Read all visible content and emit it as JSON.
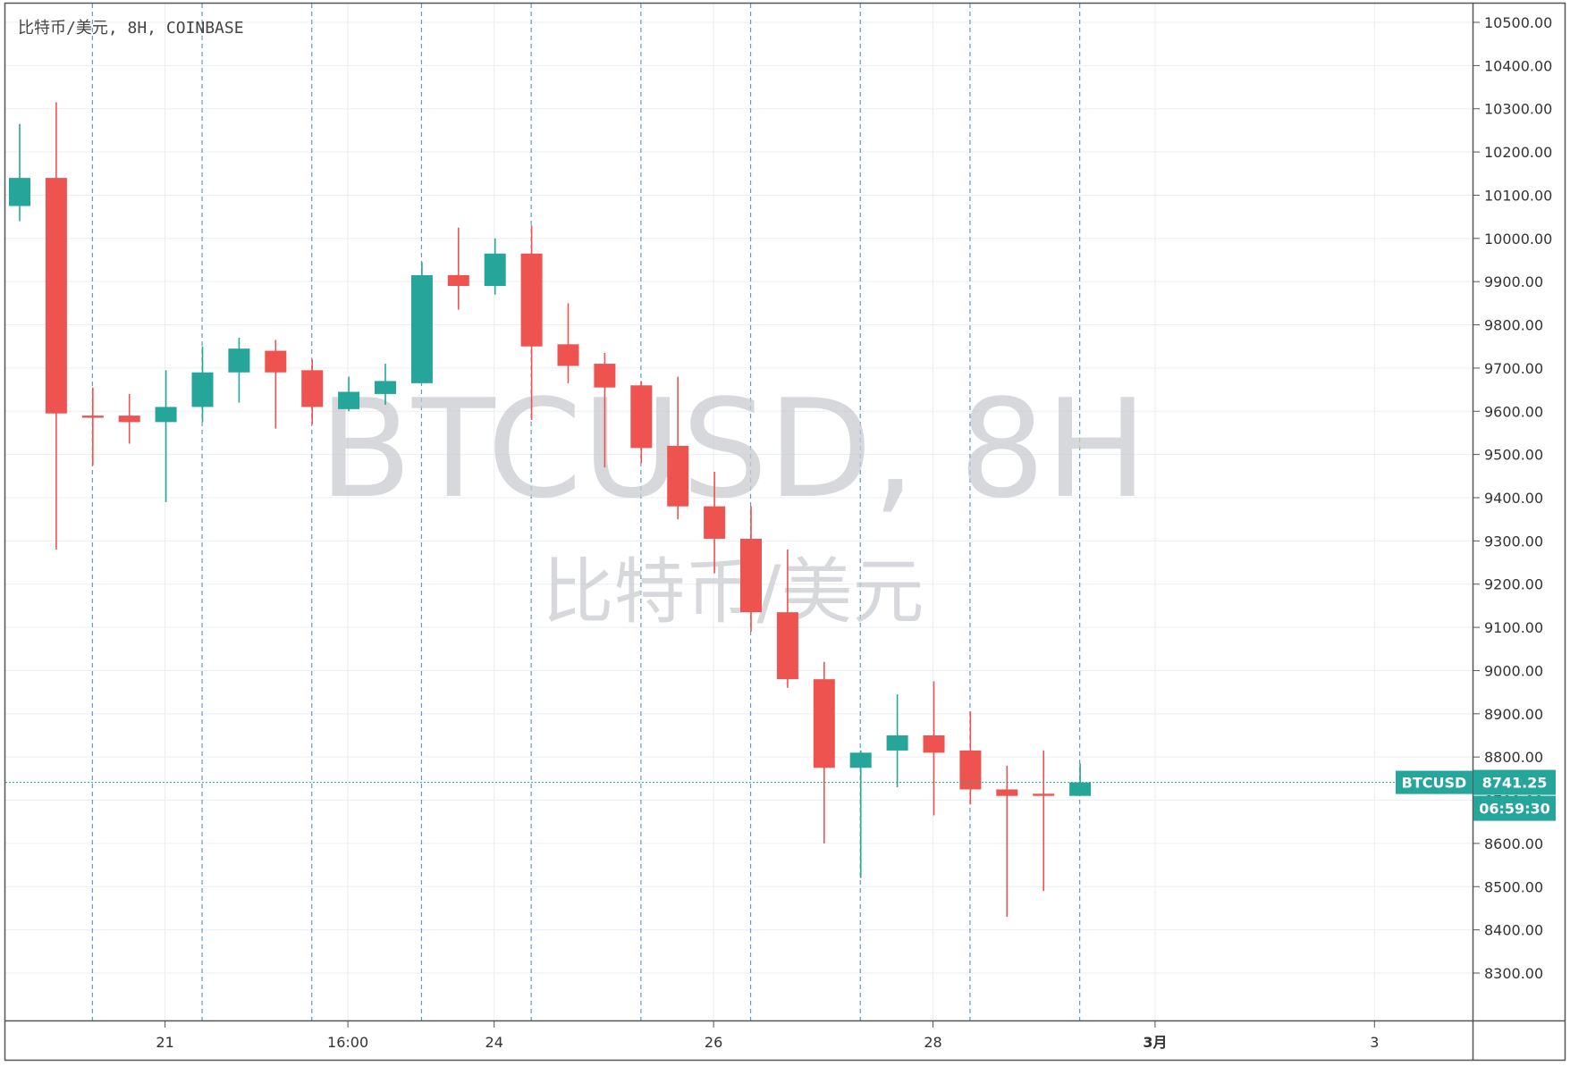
{
  "header": {
    "symbol_line": "比特币/美元, 8H, COINBASE"
  },
  "watermark": {
    "ticker": "BTCUSD, 8H",
    "description": "比特币/美元"
  },
  "price_tag": {
    "label": "BTCUSD",
    "price": "8741.25",
    "countdown": "06:59:30"
  },
  "colors": {
    "up": "#26a69a",
    "down": "#ef5350",
    "grid": "#ecedf0",
    "session_line": "#5b9bd5",
    "price_line": "#26a69a",
    "frame": "#555555"
  },
  "chart_data": {
    "type": "candlestick",
    "timeframe": "8H",
    "x_labels": [
      {
        "slot": 4,
        "label": "21",
        "bold": false
      },
      {
        "slot": 9,
        "label": "16:00",
        "bold": false
      },
      {
        "slot": 13,
        "label": "24",
        "bold": false
      },
      {
        "slot": 19,
        "label": "26",
        "bold": false
      },
      {
        "slot": 25,
        "label": "28",
        "bold": false
      },
      {
        "slot": 31,
        "label": "3月",
        "bold": true
      },
      {
        "slot": 37,
        "label": "3",
        "bold": false
      }
    ],
    "session_lines": [
      2,
      5,
      8,
      11,
      14,
      17,
      20,
      23,
      26,
      29
    ],
    "y_ticks": [
      "10500.00",
      "10400.00",
      "10300.00",
      "10200.00",
      "10100.00",
      "10000.00",
      "9900.00",
      "9800.00",
      "9700.00",
      "9600.00",
      "9500.00",
      "9400.00",
      "9300.00",
      "9200.00",
      "9100.00",
      "9000.00",
      "8900.00",
      "8800.00",
      "8700.00",
      "8600.00",
      "8500.00",
      "8400.00",
      "8300.00"
    ],
    "ylim": [
      8245,
      10545
    ],
    "candles": [
      {
        "o": 10075,
        "h": 10265,
        "l": 10040,
        "c": 10140
      },
      {
        "o": 10140,
        "h": 10315,
        "l": 9280,
        "c": 9595
      },
      {
        "o": 9590,
        "h": 9655,
        "l": 9475,
        "c": 9585
      },
      {
        "o": 9590,
        "h": 9640,
        "l": 9525,
        "c": 9575
      },
      {
        "o": 9575,
        "h": 9695,
        "l": 9390,
        "c": 9610
      },
      {
        "o": 9610,
        "h": 9750,
        "l": 9575,
        "c": 9690
      },
      {
        "o": 9690,
        "h": 9770,
        "l": 9620,
        "c": 9745
      },
      {
        "o": 9740,
        "h": 9765,
        "l": 9560,
        "c": 9690
      },
      {
        "o": 9695,
        "h": 9720,
        "l": 9570,
        "c": 9610
      },
      {
        "o": 9605,
        "h": 9680,
        "l": 9600,
        "c": 9645
      },
      {
        "o": 9640,
        "h": 9710,
        "l": 9615,
        "c": 9670
      },
      {
        "o": 9665,
        "h": 9945,
        "l": 9665,
        "c": 9915
      },
      {
        "o": 9915,
        "h": 10025,
        "l": 9835,
        "c": 9890
      },
      {
        "o": 9890,
        "h": 10000,
        "l": 9870,
        "c": 9965
      },
      {
        "o": 9965,
        "h": 10030,
        "l": 9580,
        "c": 9750
      },
      {
        "o": 9755,
        "h": 9850,
        "l": 9665,
        "c": 9705
      },
      {
        "o": 9710,
        "h": 9735,
        "l": 9470,
        "c": 9655
      },
      {
        "o": 9660,
        "h": 9670,
        "l": 9480,
        "c": 9515
      },
      {
        "o": 9520,
        "h": 9680,
        "l": 9350,
        "c": 9380
      },
      {
        "o": 9380,
        "h": 9460,
        "l": 9225,
        "c": 9305
      },
      {
        "o": 9305,
        "h": 9380,
        "l": 9090,
        "c": 9135
      },
      {
        "o": 9135,
        "h": 9280,
        "l": 8960,
        "c": 8980
      },
      {
        "o": 8980,
        "h": 9020,
        "l": 8600,
        "c": 8775
      },
      {
        "o": 8775,
        "h": 8815,
        "l": 8520,
        "c": 8810
      },
      {
        "o": 8815,
        "h": 8945,
        "l": 8730,
        "c": 8850
      },
      {
        "o": 8850,
        "h": 8975,
        "l": 8665,
        "c": 8810
      },
      {
        "o": 8815,
        "h": 8905,
        "l": 8690,
        "c": 8725
      },
      {
        "o": 8725,
        "h": 8780,
        "l": 8430,
        "c": 8710
      },
      {
        "o": 8715,
        "h": 8815,
        "l": 8490,
        "c": 8710
      },
      {
        "o": 8710,
        "h": 8785,
        "l": 8710,
        "c": 8741.25
      }
    ],
    "last_price": 8741.25
  }
}
